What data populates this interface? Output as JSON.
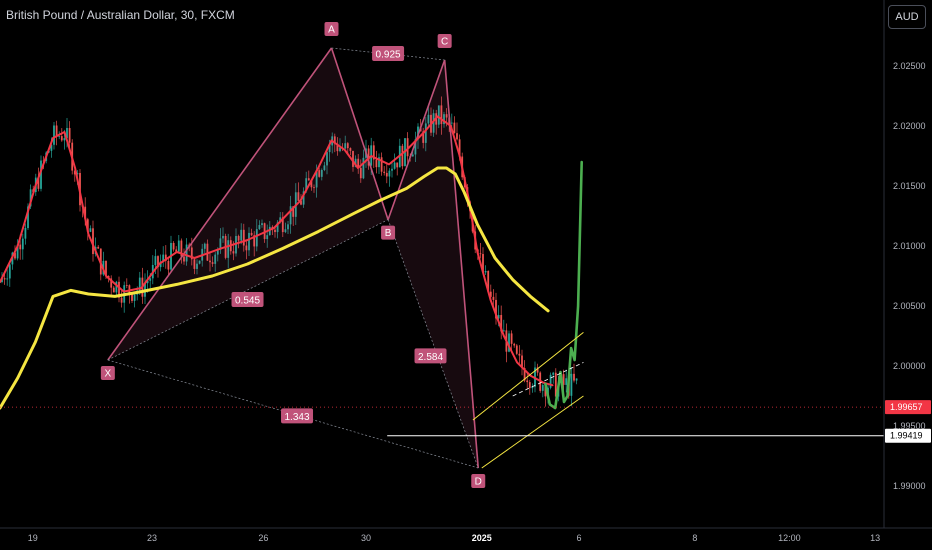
{
  "header": {
    "title": "British Pound / Australian Dollar, 30, FXCM",
    "currency_button": "AUD"
  },
  "chart_data": {
    "type": "line",
    "y_ticks": [
      "2.02500",
      "2.02000",
      "2.01500",
      "2.01000",
      "2.00500",
      "2.00000",
      "1.99500",
      "1.99000"
    ],
    "y_tick_values": [
      2.025,
      2.02,
      2.015,
      2.01,
      2.005,
      2.0,
      1.995,
      1.99
    ],
    "ylim": [
      1.9865,
      2.0305
    ],
    "x_ticks": [
      "19",
      "23",
      "26",
      "30",
      "2025",
      "6",
      "8",
      "12:00",
      "13"
    ],
    "x_tick_bold": [
      false,
      false,
      false,
      false,
      true,
      false,
      false,
      false,
      false
    ],
    "price_tags": [
      {
        "label": "1.99657",
        "value": 1.99657,
        "color": "#f23645",
        "text_color": "#ffffff"
      },
      {
        "label": "1.99419",
        "value": 1.99419,
        "color": "#ffffff",
        "text_color": "#000000"
      }
    ],
    "harmonic_pattern": {
      "points": [
        {
          "name": "X",
          "t": 0.122,
          "price": 2.0005
        },
        {
          "name": "A",
          "t": 0.375,
          "price": 2.0265
        },
        {
          "name": "B",
          "t": 0.439,
          "price": 2.0122
        },
        {
          "name": "C",
          "t": 0.503,
          "price": 2.0255
        },
        {
          "name": "D",
          "t": 0.541,
          "price": 1.9915
        }
      ],
      "ratios": [
        {
          "label": "0.545",
          "t": 0.28,
          "price": 2.0055
        },
        {
          "label": "0.925",
          "t": 0.439,
          "price": 2.026
        },
        {
          "label": "2.584",
          "t": 0.487,
          "price": 2.0008
        },
        {
          "label": "1.343",
          "t": 0.336,
          "price": 1.9958
        }
      ],
      "color": "#c0537a"
    },
    "series": [
      {
        "name": "",
        "color": "#f23645",
        "x": [
          0.0,
          0.02,
          0.04,
          0.06,
          0.073,
          0.085,
          0.1,
          0.12,
          0.14,
          0.16,
          0.18,
          0.2,
          0.22,
          0.25,
          0.28,
          0.31,
          0.34,
          0.36,
          0.375,
          0.39,
          0.405,
          0.42,
          0.44,
          0.46,
          0.48,
          0.495,
          0.51,
          0.52,
          0.53,
          0.54,
          0.555,
          0.57,
          0.585,
          0.6,
          0.615,
          0.625
        ],
        "y": [
          2.007,
          2.01,
          2.015,
          2.019,
          2.0195,
          2.0165,
          2.011,
          2.0075,
          2.0062,
          2.0065,
          2.0085,
          2.0095,
          2.009,
          2.0098,
          2.0105,
          2.0115,
          2.0138,
          2.0165,
          2.0188,
          2.018,
          2.0165,
          2.0175,
          2.0168,
          2.018,
          2.0195,
          2.0208,
          2.02,
          2.0175,
          2.014,
          2.0095,
          2.0055,
          2.0025,
          2.0003,
          1.9992,
          1.9986,
          1.9984
        ]
      },
      {
        "name": "",
        "color": "#f5e642",
        "x": [
          0.0,
          0.02,
          0.04,
          0.06,
          0.08,
          0.1,
          0.13,
          0.16,
          0.2,
          0.24,
          0.28,
          0.32,
          0.36,
          0.4,
          0.43,
          0.46,
          0.48,
          0.495,
          0.505,
          0.515,
          0.525,
          0.54,
          0.56,
          0.58,
          0.6,
          0.62
        ],
        "y": [
          1.9965,
          1.999,
          2.002,
          2.0058,
          2.0063,
          2.006,
          2.0058,
          2.0062,
          2.0068,
          2.0075,
          2.0085,
          2.0098,
          2.0112,
          2.0127,
          2.0138,
          2.0148,
          2.0158,
          2.0165,
          2.0165,
          2.016,
          2.0145,
          2.0118,
          2.009,
          2.0072,
          2.0058,
          2.0046
        ]
      },
      {
        "name": "",
        "color": "#4caf50",
        "x": [
          0.617,
          0.622,
          0.628,
          0.634,
          0.638,
          0.642,
          0.646,
          0.65,
          0.654,
          0.658
        ],
        "y": [
          1.9985,
          1.9968,
          1.9965,
          1.9995,
          1.997,
          1.9975,
          2.0015,
          2.0005,
          2.005,
          2.017
        ]
      }
    ],
    "channel": {
      "color": "#f5e642",
      "lower": [
        [
          0.545,
          1.9915
        ],
        [
          0.66,
          1.9975
        ]
      ],
      "upper": [
        [
          0.535,
          1.9955
        ],
        [
          0.66,
          2.0028
        ]
      ],
      "mid": [
        [
          0.58,
          1.9975
        ],
        [
          0.66,
          2.0003
        ]
      ]
    },
    "horizontal_line": {
      "price": 1.99419,
      "t_start": 0.438,
      "color": "#ffffff"
    }
  }
}
